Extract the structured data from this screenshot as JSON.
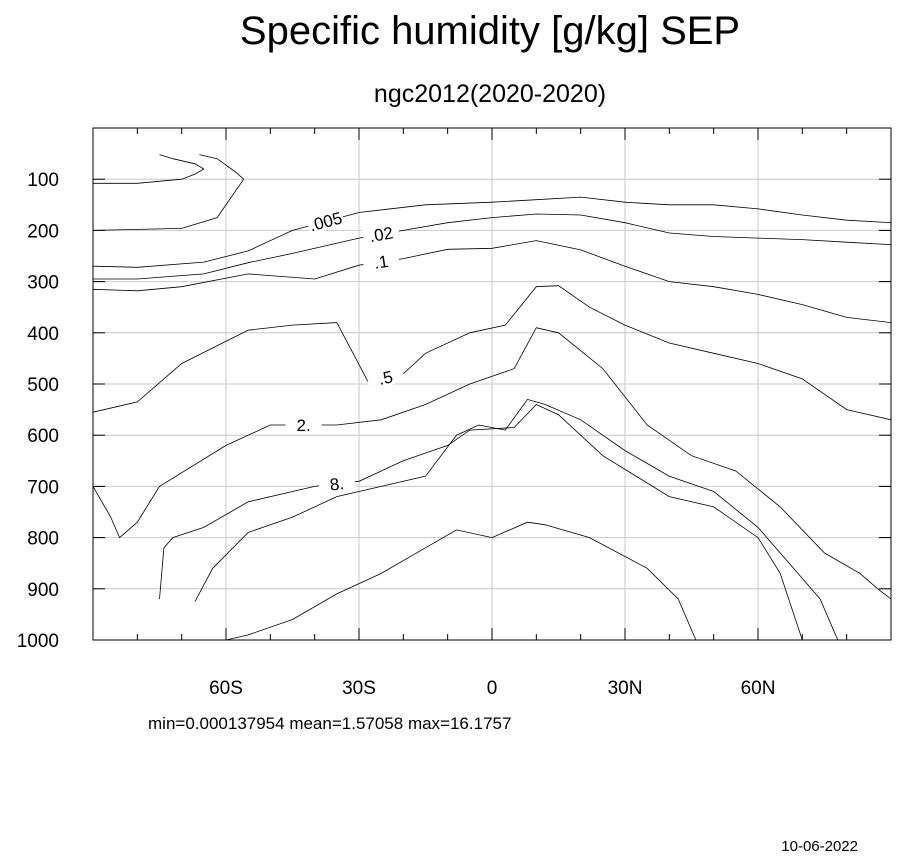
{
  "chart_data": {
    "type": "contour",
    "title": "Specific humidity [g/kg] SEP",
    "subtitle": "ngc2012(2020-2020)",
    "xlabel": "",
    "ylabel": "",
    "xlim": [
      -90,
      90
    ],
    "ylim": [
      1000,
      0
    ],
    "x_ticks": [
      {
        "value": -60,
        "label": "60S"
      },
      {
        "value": -30,
        "label": "30S"
      },
      {
        "value": 0,
        "label": "0"
      },
      {
        "value": 30,
        "label": "30N"
      },
      {
        "value": 60,
        "label": "60N"
      }
    ],
    "y_ticks": [
      {
        "value": 100,
        "label": "100"
      },
      {
        "value": 200,
        "label": "200"
      },
      {
        "value": 300,
        "label": "300"
      },
      {
        "value": 400,
        "label": "400"
      },
      {
        "value": 500,
        "label": "500"
      },
      {
        "value": 600,
        "label": "600"
      },
      {
        "value": 700,
        "label": "700"
      },
      {
        "value": 800,
        "label": "800"
      },
      {
        "value": 900,
        "label": "900"
      },
      {
        "value": 1000,
        "label": "1000"
      }
    ],
    "grid": true,
    "contours": [
      {
        "label": "",
        "points": [
          [
            -90,
            108
          ],
          [
            -80,
            108
          ],
          [
            -70,
            100
          ],
          [
            -67,
            90
          ],
          [
            -65,
            80
          ],
          [
            -67,
            70
          ],
          [
            -72,
            60
          ],
          [
            -75,
            52
          ]
        ]
      },
      {
        "label": "",
        "points": [
          [
            -90,
            200
          ],
          [
            -80,
            198
          ],
          [
            -70,
            196
          ],
          [
            -62,
            175
          ],
          [
            -56,
            100
          ],
          [
            -58,
            85
          ],
          [
            -62,
            60
          ],
          [
            -66,
            52
          ]
        ]
      },
      {
        "label": ".005",
        "points": [
          [
            -90,
            270
          ],
          [
            -80,
            272
          ],
          [
            -65,
            262
          ],
          [
            -55,
            240
          ],
          [
            -45,
            200
          ],
          [
            -30,
            165
          ],
          [
            -15,
            150
          ],
          [
            0,
            145
          ],
          [
            10,
            140
          ],
          [
            20,
            135
          ],
          [
            30,
            145
          ],
          [
            40,
            150
          ],
          [
            50,
            150
          ],
          [
            60,
            158
          ],
          [
            70,
            170
          ],
          [
            80,
            180
          ],
          [
            90,
            185
          ]
        ]
      },
      {
        "label": ".02",
        "points": [
          [
            -90,
            295
          ],
          [
            -80,
            295
          ],
          [
            -65,
            285
          ],
          [
            -55,
            263
          ],
          [
            -45,
            245
          ],
          [
            -30,
            215
          ],
          [
            -20,
            200
          ],
          [
            -10,
            185
          ],
          [
            0,
            175
          ],
          [
            10,
            168
          ],
          [
            20,
            170
          ],
          [
            30,
            185
          ],
          [
            40,
            205
          ],
          [
            50,
            212
          ],
          [
            60,
            215
          ],
          [
            70,
            218
          ],
          [
            80,
            223
          ],
          [
            90,
            228
          ]
        ]
      },
      {
        "label": ".1",
        "points": [
          [
            -90,
            315
          ],
          [
            -80,
            318
          ],
          [
            -70,
            310
          ],
          [
            -55,
            285
          ],
          [
            -40,
            295
          ],
          [
            -30,
            268
          ],
          [
            -20,
            255
          ],
          [
            -10,
            237
          ],
          [
            0,
            235
          ],
          [
            10,
            220
          ],
          [
            20,
            238
          ],
          [
            30,
            270
          ],
          [
            40,
            300
          ],
          [
            50,
            310
          ],
          [
            60,
            325
          ],
          [
            70,
            345
          ],
          [
            80,
            370
          ],
          [
            90,
            380
          ]
        ]
      },
      {
        "label": ".5",
        "points": [
          [
            -90,
            555
          ],
          [
            -80,
            535
          ],
          [
            -70,
            460
          ],
          [
            -55,
            395
          ],
          [
            -45,
            385
          ],
          [
            -35,
            380
          ],
          [
            -28,
            495
          ],
          [
            -20,
            480
          ],
          [
            -15,
            440
          ],
          [
            -5,
            400
          ],
          [
            3,
            385
          ],
          [
            10,
            310
          ],
          [
            15,
            308
          ],
          [
            22,
            350
          ],
          [
            30,
            385
          ],
          [
            40,
            420
          ],
          [
            50,
            440
          ],
          [
            60,
            460
          ],
          [
            70,
            490
          ],
          [
            80,
            550
          ],
          [
            90,
            570
          ]
        ]
      },
      {
        "label": "2.",
        "points": [
          [
            -90,
            700
          ],
          [
            -86,
            760
          ],
          [
            -84,
            800
          ],
          [
            -80,
            770
          ],
          [
            -75,
            700
          ],
          [
            -60,
            620
          ],
          [
            -50,
            580
          ],
          [
            -35,
            580
          ],
          [
            -25,
            570
          ],
          [
            -15,
            540
          ],
          [
            -5,
            500
          ],
          [
            5,
            470
          ],
          [
            10,
            390
          ],
          [
            15,
            400
          ],
          [
            25,
            470
          ],
          [
            35,
            580
          ],
          [
            45,
            640
          ],
          [
            55,
            670
          ],
          [
            65,
            740
          ],
          [
            75,
            830
          ],
          [
            83,
            870
          ],
          [
            87,
            900
          ],
          [
            90,
            920
          ]
        ]
      },
      {
        "label": "8.",
        "points": [
          [
            -75,
            920
          ],
          [
            -74,
            820
          ],
          [
            -72,
            800
          ],
          [
            -65,
            780
          ],
          [
            -55,
            730
          ],
          [
            -40,
            700
          ],
          [
            -30,
            690
          ],
          [
            -20,
            650
          ],
          [
            -10,
            620
          ],
          [
            -5,
            590
          ],
          [
            5,
            585
          ],
          [
            10,
            540
          ],
          [
            15,
            560
          ],
          [
            25,
            640
          ],
          [
            40,
            720
          ],
          [
            50,
            740
          ],
          [
            60,
            800
          ],
          [
            65,
            870
          ],
          [
            70,
            1000
          ]
        ]
      },
      {
        "label": "",
        "points": [
          [
            -67,
            925
          ],
          [
            -63,
            860
          ],
          [
            -55,
            790
          ],
          [
            -45,
            760
          ],
          [
            -35,
            720
          ],
          [
            -25,
            700
          ],
          [
            -15,
            680
          ],
          [
            -8,
            600
          ],
          [
            -3,
            580
          ],
          [
            3,
            590
          ],
          [
            8,
            530
          ],
          [
            12,
            540
          ],
          [
            20,
            570
          ],
          [
            30,
            630
          ],
          [
            40,
            680
          ],
          [
            50,
            710
          ],
          [
            60,
            780
          ],
          [
            68,
            860
          ],
          [
            74,
            920
          ],
          [
            78,
            1000
          ]
        ]
      },
      {
        "label": "",
        "points": [
          [
            -60,
            1000
          ],
          [
            -55,
            990
          ],
          [
            -45,
            960
          ],
          [
            -35,
            910
          ],
          [
            -25,
            870
          ],
          [
            -15,
            820
          ],
          [
            -8,
            785
          ],
          [
            0,
            800
          ],
          [
            8,
            770
          ],
          [
            12,
            775
          ],
          [
            22,
            800
          ],
          [
            35,
            860
          ],
          [
            42,
            920
          ],
          [
            46,
            1000
          ]
        ]
      }
    ]
  },
  "stats_text": "min=0.000137954   mean=1.57058   max=16.1757",
  "date_text": "10-06-2022"
}
